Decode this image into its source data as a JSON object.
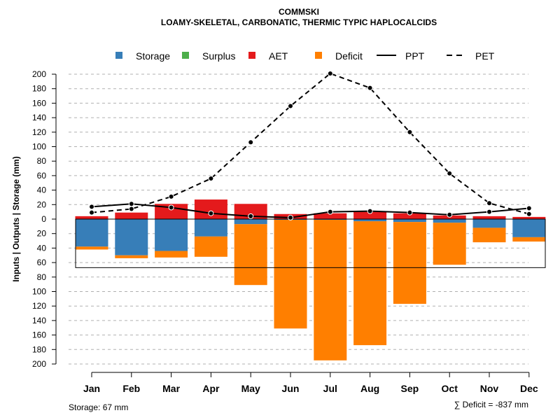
{
  "chart_data": {
    "type": "bar",
    "title": "COMMSKI",
    "subtitle": "LOAMY-SKELETAL, CARBONATIC, THERMIC TYPIC HAPLOCALCIDS",
    "ylabel": "Inputs | Outputs | Storage    (mm)",
    "categories": [
      "Jan",
      "Feb",
      "Mar",
      "Apr",
      "May",
      "Jun",
      "Jul",
      "Aug",
      "Sep",
      "Oct",
      "Nov",
      "Dec"
    ],
    "ylim": [
      -200,
      200
    ],
    "yticks": [
      "200",
      "180",
      "160",
      "140",
      "120",
      "100",
      "80",
      "60",
      "40",
      "20",
      "0",
      "20",
      "40",
      "60",
      "80",
      "100",
      "120",
      "140",
      "160",
      "180",
      "200"
    ],
    "legend": [
      {
        "key": "storage",
        "label": "Storage",
        "color": "#377eb8",
        "kind": "box"
      },
      {
        "key": "surplus",
        "label": "Surplus",
        "color": "#4daf4a",
        "kind": "box"
      },
      {
        "key": "aet",
        "label": "AET",
        "color": "#e41a1c",
        "kind": "box"
      },
      {
        "key": "deficit",
        "label": "Deficit",
        "color": "#ff7f00",
        "kind": "box"
      },
      {
        "key": "ppt",
        "label": "PPT",
        "color": "#000000",
        "kind": "solid"
      },
      {
        "key": "pet",
        "label": "PET",
        "color": "#000000",
        "kind": "dashed"
      }
    ],
    "series": [
      {
        "name": "AET",
        "values": [
          4,
          9,
          21,
          27,
          21,
          7,
          8,
          10,
          8,
          5,
          4,
          3
        ]
      },
      {
        "name": "Surplus",
        "values": [
          0,
          0,
          0,
          0,
          0,
          0,
          0,
          0,
          0,
          0,
          0,
          0
        ]
      },
      {
        "name": "Storage",
        "values": [
          38,
          50,
          44,
          24,
          7,
          1,
          1,
          3,
          4,
          5,
          12,
          25
        ]
      },
      {
        "name": "Deficit",
        "values": [
          4,
          4,
          9,
          28,
          84,
          150,
          194,
          171,
          113,
          58,
          20,
          6
        ]
      },
      {
        "name": "PPT",
        "values": [
          17,
          21,
          16,
          8,
          4,
          2,
          10,
          11,
          9,
          6,
          10,
          15
        ]
      },
      {
        "name": "PET",
        "values": [
          9,
          14,
          31,
          56,
          106,
          156,
          201,
          181,
          120,
          63,
          22,
          7
        ]
      }
    ],
    "storage_capacity": 67,
    "footer_left": "Storage: 67 mm",
    "footer_right": "∑ Deficit = -837 mm",
    "grid": true
  }
}
